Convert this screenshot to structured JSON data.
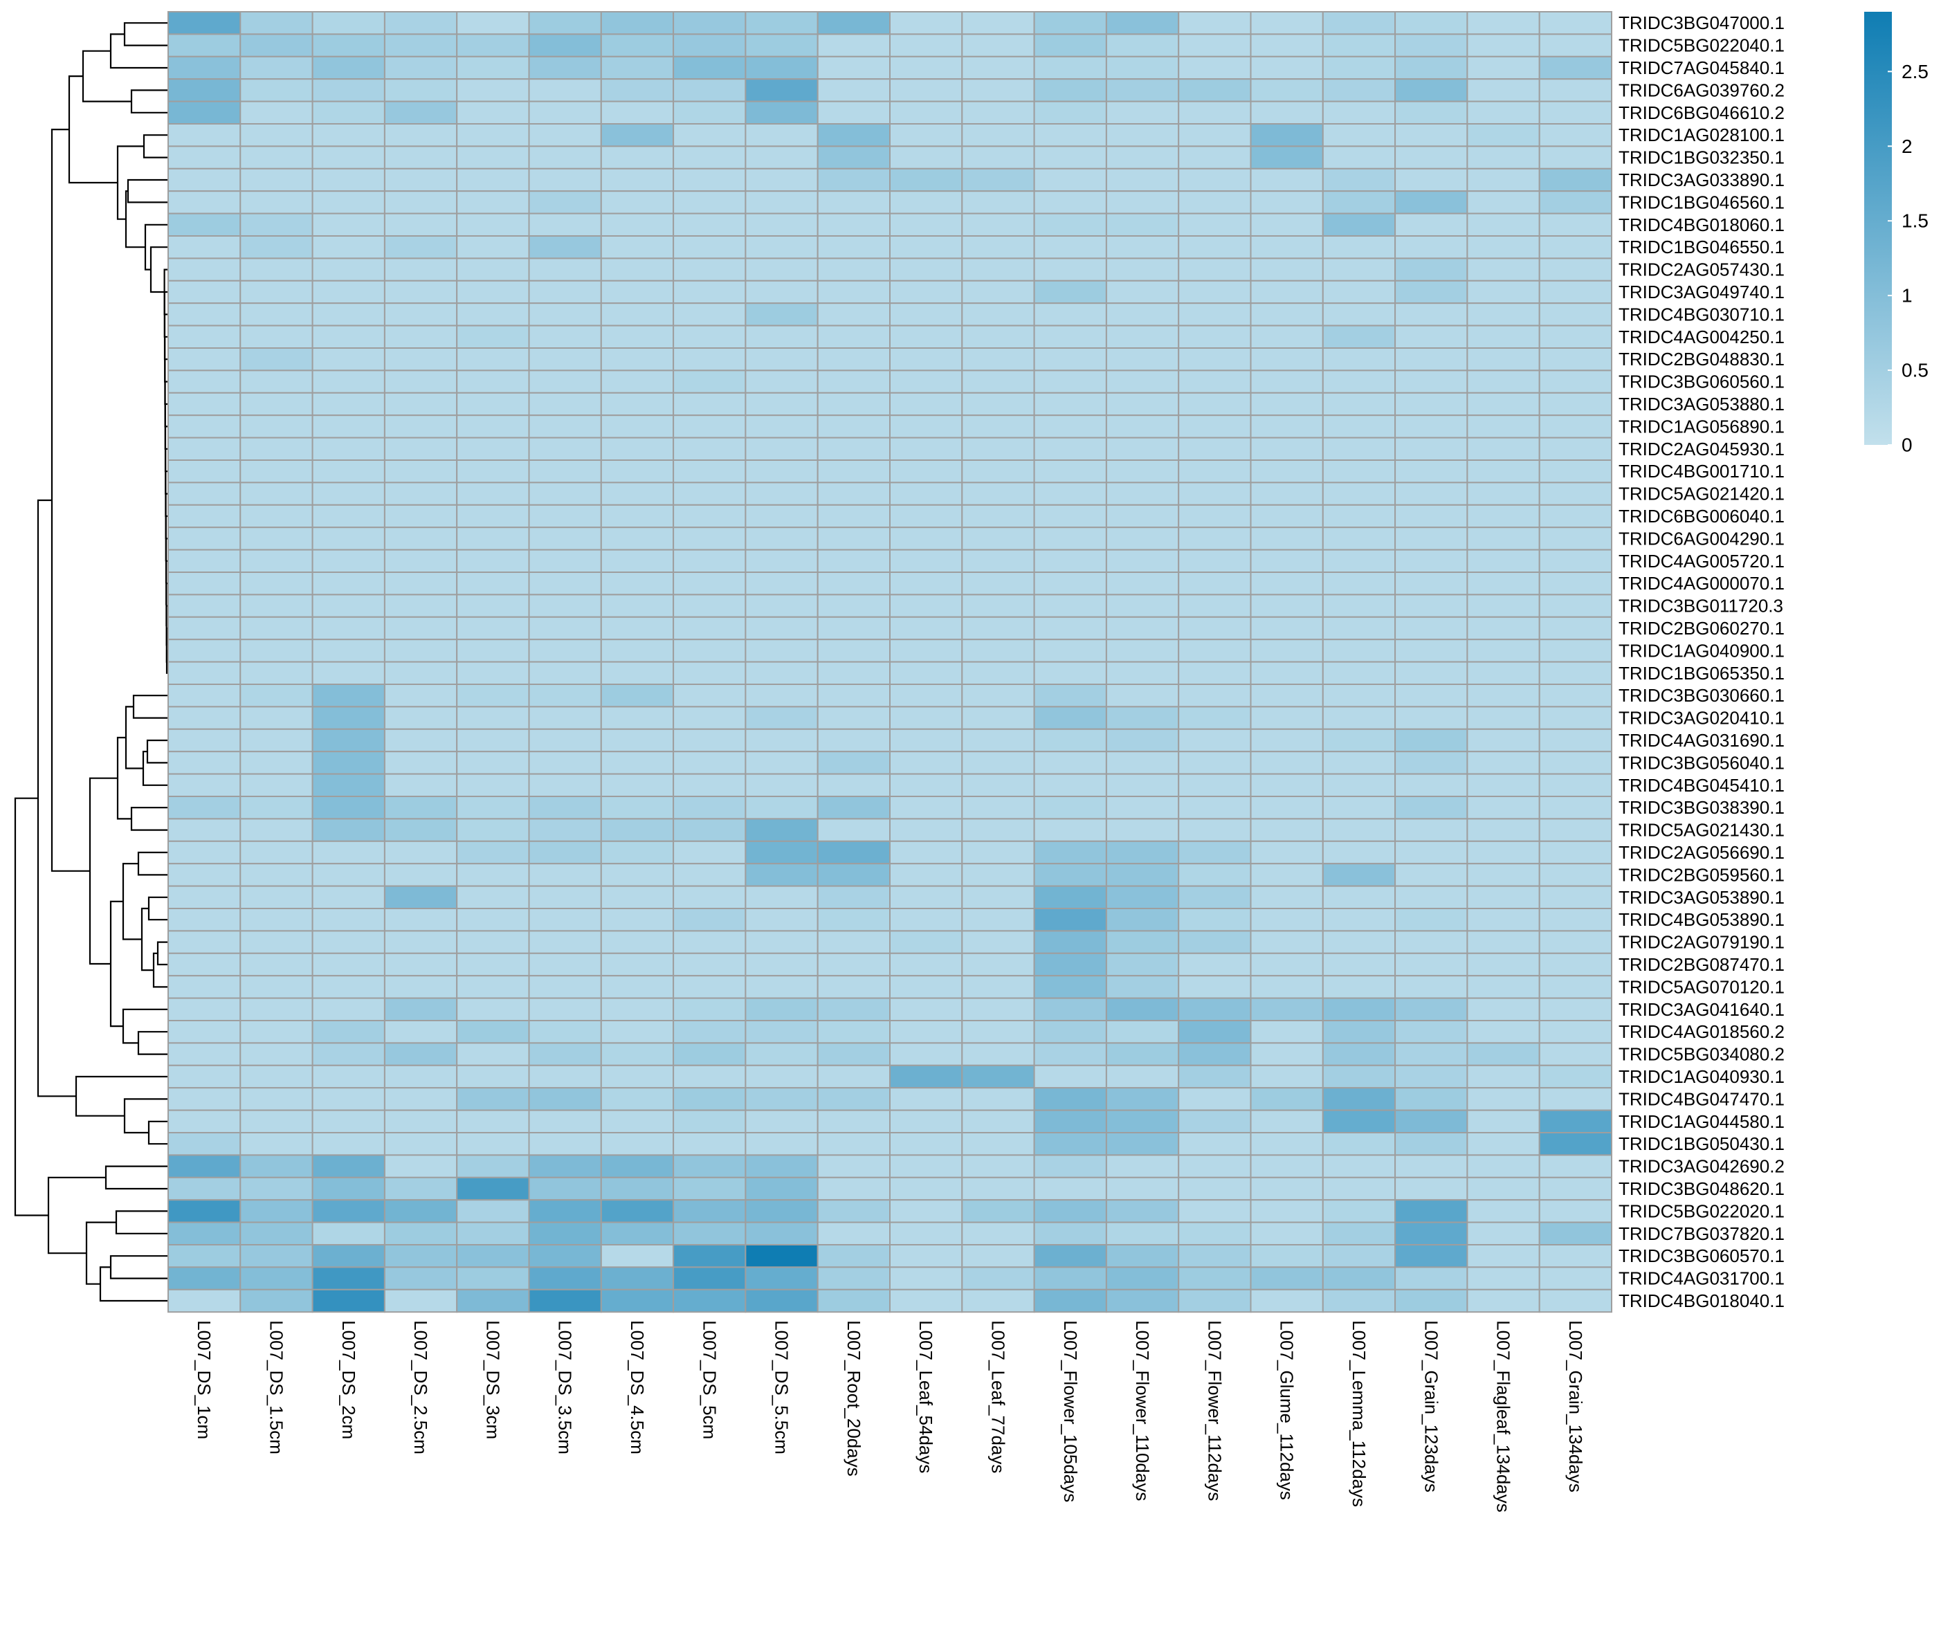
{
  "chart_data": {
    "type": "heatmap",
    "title": "",
    "xlabel": "",
    "ylabel": "",
    "colors": {
      "low": "#c2e0ec",
      "high": "#0f7db3",
      "cell_border": "#9e9e9e",
      "tree": "#000000"
    },
    "colorbar": {
      "min": 0,
      "max": 2.9,
      "ticks": [
        0,
        0.5,
        1,
        1.5,
        2,
        2.5
      ],
      "tick_labels": [
        "0",
        "0.5",
        "1",
        "1.5",
        "2",
        "2.5"
      ]
    },
    "columns": [
      "L007_DS_1cm",
      "L007_DS_1.5cm",
      "L007_DS_2cm",
      "L007_DS_2.5cm",
      "L007_DS_3cm",
      "L007_DS_3.5cm",
      "L007_DS_4.5cm",
      "L007_DS_5cm",
      "L007_DS_5.5cm",
      "L007_Root_20days",
      "L007_Leaf_54days",
      "L007_Leaf_77days",
      "L007_Flower_105days",
      "L007_Flower_110days",
      "L007_Flower_112days",
      "L007_Glume_112days",
      "L007_Lemma_112days",
      "L007_Grain_123days",
      "L007_Flagleaf_134days",
      "L007_Grain_134days"
    ],
    "rows": [
      "TRIDC3BG047000.1",
      "TRIDC5BG022040.1",
      "TRIDC7AG045840.1",
      "TRIDC6AG039760.2",
      "TRIDC6BG046610.2",
      "TRIDC1AG028100.1",
      "TRIDC1BG032350.1",
      "TRIDC3AG033890.1",
      "TRIDC1BG046560.1",
      "TRIDC4BG018060.1",
      "TRIDC1BG046550.1",
      "TRIDC2AG057430.1",
      "TRIDC3AG049740.1",
      "TRIDC4BG030710.1",
      "TRIDC4AG004250.1",
      "TRIDC2BG048830.1",
      "TRIDC3BG060560.1",
      "TRIDC3AG053880.1",
      "TRIDC1AG056890.1",
      "TRIDC2AG045930.1",
      "TRIDC4BG001710.1",
      "TRIDC5AG021420.1",
      "TRIDC6BG006040.1",
      "TRIDC6AG004290.1",
      "TRIDC4AG005720.1",
      "TRIDC4AG000070.1",
      "TRIDC3BG011720.3",
      "TRIDC2BG060270.1",
      "TRIDC1AG040900.1",
      "TRIDC1BG065350.1",
      "TRIDC3BG030660.1",
      "TRIDC3AG020410.1",
      "TRIDC4AG031690.1",
      "TRIDC3BG056040.1",
      "TRIDC4BG045410.1",
      "TRIDC3BG038390.1",
      "TRIDC5AG021430.1",
      "TRIDC2AG056690.1",
      "TRIDC2BG059560.1",
      "TRIDC3AG053890.1",
      "TRIDC4BG053890.1",
      "TRIDC2AG079190.1",
      "TRIDC2BG087470.1",
      "TRIDC5AG070120.1",
      "TRIDC3AG041640.1",
      "TRIDC4AG018560.2",
      "TRIDC5BG034080.2",
      "TRIDC1AG040930.1",
      "TRIDC4BG047470.1",
      "TRIDC1AG044580.1",
      "TRIDC1BG050430.1",
      "TRIDC3AG042690.2",
      "TRIDC3BG048620.1",
      "TRIDC5BG022020.1",
      "TRIDC7BG037820.1",
      "TRIDC3BG060570.1",
      "TRIDC4AG031700.1",
      "TRIDC4BG018040.1"
    ],
    "values": [
      [
        1.6,
        0.5,
        0.3,
        0.4,
        0.2,
        0.6,
        0.8,
        0.7,
        0.6,
        1.2,
        0.2,
        0.2,
        0.6,
        0.9,
        0.2,
        0.2,
        0.4,
        0.3,
        0.2,
        0.2
      ],
      [
        0.6,
        0.7,
        0.6,
        0.5,
        0.5,
        1.0,
        0.6,
        0.7,
        0.6,
        0.2,
        0.2,
        0.2,
        0.6,
        0.3,
        0.2,
        0.2,
        0.3,
        0.4,
        0.2,
        0.2
      ],
      [
        0.9,
        0.4,
        0.8,
        0.4,
        0.3,
        0.7,
        0.5,
        1.0,
        1.0,
        0.2,
        0.2,
        0.2,
        0.3,
        0.3,
        0.2,
        0.2,
        0.3,
        0.5,
        0.2,
        0.7
      ],
      [
        1.2,
        0.3,
        0.4,
        0.3,
        0.2,
        0.2,
        0.4,
        0.4,
        1.6,
        0.2,
        0.2,
        0.2,
        0.6,
        0.5,
        0.6,
        0.3,
        0.4,
        1.0,
        0.2,
        0.2
      ],
      [
        1.2,
        0.2,
        0.3,
        0.7,
        0.2,
        0.2,
        0.2,
        0.3,
        1.1,
        0.2,
        0.2,
        0.2,
        0.3,
        0.2,
        0.2,
        0.2,
        0.2,
        0.3,
        0.2,
        0.2
      ],
      [
        0.2,
        0.2,
        0.2,
        0.2,
        0.2,
        0.2,
        0.9,
        0.2,
        0.2,
        1.0,
        0.2,
        0.2,
        0.2,
        0.2,
        0.2,
        1.1,
        0.2,
        0.2,
        0.3,
        0.2
      ],
      [
        0.2,
        0.2,
        0.2,
        0.2,
        0.2,
        0.2,
        0.2,
        0.2,
        0.2,
        0.8,
        0.2,
        0.2,
        0.2,
        0.2,
        0.2,
        1.0,
        0.2,
        0.2,
        0.2,
        0.2
      ],
      [
        0.2,
        0.2,
        0.2,
        0.2,
        0.2,
        0.2,
        0.2,
        0.2,
        0.2,
        0.5,
        0.6,
        0.5,
        0.2,
        0.2,
        0.2,
        0.2,
        0.4,
        0.2,
        0.2,
        0.8
      ],
      [
        0.2,
        0.2,
        0.2,
        0.2,
        0.2,
        0.4,
        0.2,
        0.2,
        0.2,
        0.2,
        0.2,
        0.2,
        0.2,
        0.2,
        0.2,
        0.2,
        0.5,
        0.9,
        0.2,
        0.5
      ],
      [
        0.6,
        0.4,
        0.2,
        0.2,
        0.2,
        0.2,
        0.2,
        0.2,
        0.2,
        0.2,
        0.2,
        0.2,
        0.3,
        0.3,
        0.2,
        0.2,
        0.9,
        0.2,
        0.2,
        0.2
      ],
      [
        0.2,
        0.4,
        0.2,
        0.4,
        0.2,
        0.7,
        0.2,
        0.2,
        0.2,
        0.2,
        0.2,
        0.2,
        0.2,
        0.2,
        0.2,
        0.2,
        0.2,
        0.2,
        0.2,
        0.2
      ],
      [
        0.2,
        0.2,
        0.2,
        0.2,
        0.2,
        0.2,
        0.2,
        0.2,
        0.2,
        0.2,
        0.2,
        0.2,
        0.2,
        0.2,
        0.2,
        0.2,
        0.2,
        0.5,
        0.2,
        0.2
      ],
      [
        0.2,
        0.2,
        0.2,
        0.2,
        0.2,
        0.2,
        0.2,
        0.2,
        0.2,
        0.2,
        0.2,
        0.2,
        0.6,
        0.2,
        0.2,
        0.2,
        0.2,
        0.5,
        0.2,
        0.2
      ],
      [
        0.2,
        0.2,
        0.2,
        0.2,
        0.2,
        0.2,
        0.2,
        0.2,
        0.6,
        0.2,
        0.2,
        0.2,
        0.2,
        0.2,
        0.2,
        0.2,
        0.2,
        0.2,
        0.2,
        0.2
      ],
      [
        0.2,
        0.2,
        0.2,
        0.2,
        0.3,
        0.2,
        0.2,
        0.2,
        0.2,
        0.2,
        0.2,
        0.2,
        0.2,
        0.2,
        0.2,
        0.2,
        0.5,
        0.2,
        0.2,
        0.2
      ],
      [
        0.2,
        0.4,
        0.2,
        0.2,
        0.2,
        0.2,
        0.2,
        0.2,
        0.2,
        0.2,
        0.2,
        0.2,
        0.2,
        0.2,
        0.2,
        0.2,
        0.2,
        0.2,
        0.2,
        0.2
      ],
      [
        0.2,
        0.2,
        0.2,
        0.2,
        0.2,
        0.2,
        0.2,
        0.3,
        0.2,
        0.2,
        0.2,
        0.2,
        0.2,
        0.2,
        0.2,
        0.2,
        0.2,
        0.2,
        0.2,
        0.2
      ],
      [
        0.2,
        0.2,
        0.2,
        0.2,
        0.2,
        0.2,
        0.2,
        0.2,
        0.2,
        0.2,
        0.2,
        0.2,
        0.2,
        0.2,
        0.2,
        0.2,
        0.2,
        0.2,
        0.2,
        0.2
      ],
      [
        0.2,
        0.2,
        0.2,
        0.2,
        0.2,
        0.2,
        0.2,
        0.2,
        0.2,
        0.2,
        0.2,
        0.2,
        0.2,
        0.2,
        0.2,
        0.2,
        0.2,
        0.2,
        0.2,
        0.2
      ],
      [
        0.2,
        0.2,
        0.2,
        0.2,
        0.2,
        0.2,
        0.2,
        0.2,
        0.2,
        0.2,
        0.2,
        0.2,
        0.2,
        0.2,
        0.2,
        0.2,
        0.2,
        0.2,
        0.2,
        0.2
      ],
      [
        0.2,
        0.2,
        0.2,
        0.2,
        0.2,
        0.2,
        0.2,
        0.2,
        0.2,
        0.2,
        0.2,
        0.2,
        0.2,
        0.2,
        0.2,
        0.2,
        0.2,
        0.2,
        0.2,
        0.2
      ],
      [
        0.2,
        0.2,
        0.2,
        0.2,
        0.2,
        0.2,
        0.2,
        0.2,
        0.2,
        0.2,
        0.2,
        0.2,
        0.2,
        0.2,
        0.2,
        0.2,
        0.2,
        0.2,
        0.2,
        0.2
      ],
      [
        0.2,
        0.2,
        0.2,
        0.2,
        0.2,
        0.2,
        0.2,
        0.2,
        0.2,
        0.2,
        0.2,
        0.2,
        0.2,
        0.2,
        0.2,
        0.2,
        0.2,
        0.2,
        0.2,
        0.2
      ],
      [
        0.2,
        0.2,
        0.2,
        0.2,
        0.2,
        0.2,
        0.2,
        0.2,
        0.2,
        0.2,
        0.2,
        0.2,
        0.2,
        0.2,
        0.2,
        0.2,
        0.2,
        0.2,
        0.2,
        0.2
      ],
      [
        0.2,
        0.2,
        0.2,
        0.2,
        0.2,
        0.2,
        0.2,
        0.2,
        0.2,
        0.2,
        0.2,
        0.2,
        0.2,
        0.2,
        0.2,
        0.2,
        0.2,
        0.2,
        0.2,
        0.2
      ],
      [
        0.2,
        0.2,
        0.2,
        0.2,
        0.2,
        0.2,
        0.2,
        0.2,
        0.2,
        0.2,
        0.2,
        0.2,
        0.2,
        0.2,
        0.2,
        0.2,
        0.2,
        0.2,
        0.2,
        0.2
      ],
      [
        0.2,
        0.2,
        0.2,
        0.2,
        0.2,
        0.2,
        0.2,
        0.2,
        0.2,
        0.2,
        0.2,
        0.2,
        0.2,
        0.2,
        0.2,
        0.2,
        0.2,
        0.2,
        0.2,
        0.2
      ],
      [
        0.2,
        0.2,
        0.2,
        0.2,
        0.2,
        0.2,
        0.2,
        0.2,
        0.2,
        0.2,
        0.2,
        0.2,
        0.2,
        0.2,
        0.2,
        0.2,
        0.2,
        0.2,
        0.2,
        0.2
      ],
      [
        0.2,
        0.2,
        0.2,
        0.2,
        0.2,
        0.2,
        0.2,
        0.2,
        0.2,
        0.2,
        0.2,
        0.2,
        0.2,
        0.2,
        0.2,
        0.2,
        0.2,
        0.2,
        0.2,
        0.2
      ],
      [
        0.2,
        0.2,
        0.2,
        0.2,
        0.2,
        0.2,
        0.2,
        0.2,
        0.2,
        0.2,
        0.2,
        0.2,
        0.2,
        0.2,
        0.2,
        0.2,
        0.2,
        0.2,
        0.2,
        0.2
      ],
      [
        0.2,
        0.3,
        1.0,
        0.2,
        0.3,
        0.3,
        0.6,
        0.2,
        0.2,
        0.2,
        0.2,
        0.2,
        0.5,
        0.2,
        0.2,
        0.2,
        0.2,
        0.2,
        0.2,
        0.2
      ],
      [
        0.2,
        0.2,
        1.0,
        0.2,
        0.2,
        0.2,
        0.2,
        0.2,
        0.4,
        0.2,
        0.2,
        0.2,
        0.8,
        0.5,
        0.3,
        0.2,
        0.2,
        0.2,
        0.2,
        0.2
      ],
      [
        0.2,
        0.2,
        1.0,
        0.2,
        0.2,
        0.2,
        0.2,
        0.2,
        0.2,
        0.2,
        0.2,
        0.2,
        0.3,
        0.4,
        0.2,
        0.2,
        0.3,
        0.6,
        0.2,
        0.2
      ],
      [
        0.2,
        0.2,
        1.0,
        0.2,
        0.2,
        0.2,
        0.2,
        0.2,
        0.2,
        0.5,
        0.2,
        0.2,
        0.2,
        0.2,
        0.2,
        0.2,
        0.2,
        0.4,
        0.2,
        0.2
      ],
      [
        0.2,
        0.2,
        1.0,
        0.2,
        0.2,
        0.2,
        0.2,
        0.2,
        0.2,
        0.2,
        0.2,
        0.2,
        0.2,
        0.2,
        0.2,
        0.2,
        0.2,
        0.2,
        0.2,
        0.2
      ],
      [
        0.5,
        0.3,
        1.0,
        0.6,
        0.3,
        0.5,
        0.3,
        0.4,
        0.3,
        0.8,
        0.2,
        0.2,
        0.3,
        0.2,
        0.2,
        0.2,
        0.2,
        0.5,
        0.2,
        0.2
      ],
      [
        0.2,
        0.2,
        0.8,
        0.6,
        0.3,
        0.4,
        0.5,
        0.5,
        1.3,
        0.2,
        0.2,
        0.2,
        0.2,
        0.2,
        0.2,
        0.2,
        0.2,
        0.2,
        0.2,
        0.2
      ],
      [
        0.2,
        0.2,
        0.2,
        0.2,
        0.4,
        0.5,
        0.3,
        0.2,
        1.3,
        1.4,
        0.2,
        0.2,
        0.8,
        0.8,
        0.5,
        0.2,
        0.2,
        0.2,
        0.2,
        0.2
      ],
      [
        0.2,
        0.2,
        0.2,
        0.2,
        0.2,
        0.2,
        0.2,
        0.2,
        1.0,
        1.0,
        0.2,
        0.2,
        0.8,
        0.8,
        0.3,
        0.2,
        0.9,
        0.2,
        0.2,
        0.2
      ],
      [
        0.2,
        0.2,
        0.2,
        1.1,
        0.2,
        0.2,
        0.2,
        0.2,
        0.2,
        0.4,
        0.2,
        0.2,
        1.3,
        0.9,
        0.5,
        0.2,
        0.2,
        0.2,
        0.2,
        0.2
      ],
      [
        0.2,
        0.2,
        0.2,
        0.2,
        0.2,
        0.2,
        0.2,
        0.4,
        0.2,
        0.3,
        0.2,
        0.2,
        1.6,
        0.8,
        0.3,
        0.2,
        0.2,
        0.3,
        0.2,
        0.2
      ],
      [
        0.2,
        0.2,
        0.2,
        0.2,
        0.2,
        0.2,
        0.2,
        0.2,
        0.2,
        0.2,
        0.3,
        0.2,
        1.1,
        0.6,
        0.5,
        0.2,
        0.2,
        0.2,
        0.2,
        0.2
      ],
      [
        0.2,
        0.2,
        0.2,
        0.2,
        0.2,
        0.2,
        0.2,
        0.2,
        0.2,
        0.2,
        0.2,
        0.2,
        1.1,
        0.5,
        0.2,
        0.2,
        0.2,
        0.2,
        0.2,
        0.2
      ],
      [
        0.2,
        0.2,
        0.2,
        0.2,
        0.2,
        0.2,
        0.2,
        0.2,
        0.2,
        0.2,
        0.2,
        0.2,
        1.0,
        0.5,
        0.2,
        0.2,
        0.2,
        0.2,
        0.2,
        0.2
      ],
      [
        0.2,
        0.2,
        0.2,
        0.7,
        0.2,
        0.2,
        0.2,
        0.3,
        0.6,
        0.5,
        0.2,
        0.2,
        0.7,
        1.1,
        0.9,
        0.7,
        0.9,
        0.7,
        0.2,
        0.2
      ],
      [
        0.2,
        0.2,
        0.5,
        0.2,
        0.6,
        0.3,
        0.2,
        0.4,
        0.4,
        0.3,
        0.2,
        0.2,
        0.5,
        0.3,
        1.1,
        0.2,
        0.7,
        0.4,
        0.2,
        0.2
      ],
      [
        0.2,
        0.2,
        0.4,
        0.7,
        0.2,
        0.5,
        0.3,
        0.6,
        0.3,
        0.5,
        0.2,
        0.2,
        0.4,
        0.6,
        0.9,
        0.2,
        0.7,
        0.4,
        0.5,
        0.2
      ],
      [
        0.2,
        0.2,
        0.2,
        0.2,
        0.2,
        0.2,
        0.2,
        0.2,
        0.2,
        0.2,
        1.4,
        1.3,
        0.2,
        0.2,
        0.5,
        0.2,
        0.5,
        0.4,
        0.2,
        0.3
      ],
      [
        0.2,
        0.2,
        0.2,
        0.2,
        0.7,
        0.8,
        0.3,
        0.6,
        0.5,
        0.5,
        0.2,
        0.2,
        1.2,
        0.9,
        0.2,
        0.6,
        1.4,
        0.6,
        0.2,
        0.2
      ],
      [
        0.2,
        0.2,
        0.2,
        0.2,
        0.2,
        0.2,
        0.2,
        0.3,
        0.2,
        0.2,
        0.2,
        0.2,
        1.1,
        1.0,
        0.4,
        0.2,
        1.5,
        1.1,
        0.2,
        1.7
      ],
      [
        0.4,
        0.2,
        0.2,
        0.2,
        0.2,
        0.2,
        0.2,
        0.2,
        0.2,
        0.2,
        0.2,
        0.2,
        0.9,
        0.9,
        0.2,
        0.2,
        0.3,
        0.5,
        0.2,
        1.8
      ],
      [
        1.6,
        0.8,
        1.4,
        0.2,
        0.5,
        1.1,
        1.2,
        0.8,
        0.9,
        0.2,
        0.2,
        0.2,
        0.4,
        0.2,
        0.2,
        0.2,
        0.2,
        0.2,
        0.2,
        0.2
      ],
      [
        0.5,
        0.5,
        1.0,
        0.5,
        2.0,
        0.8,
        0.8,
        0.6,
        1.0,
        0.2,
        0.2,
        0.2,
        0.2,
        0.2,
        0.2,
        0.2,
        0.2,
        0.2,
        0.2,
        0.2
      ],
      [
        2.1,
        0.9,
        1.6,
        1.3,
        0.4,
        1.5,
        1.8,
        1.1,
        1.2,
        0.5,
        0.2,
        0.6,
        0.9,
        0.7,
        0.2,
        0.2,
        0.3,
        1.7,
        0.2,
        0.2
      ],
      [
        1.0,
        0.8,
        0.3,
        0.6,
        0.5,
        1.3,
        1.0,
        0.8,
        0.9,
        0.2,
        0.2,
        0.2,
        0.5,
        0.3,
        0.3,
        0.2,
        0.5,
        1.6,
        0.2,
        0.8
      ],
      [
        0.6,
        0.7,
        1.4,
        0.8,
        0.9,
        1.2,
        0.2,
        2.0,
        2.9,
        0.5,
        0.2,
        0.2,
        1.4,
        0.8,
        0.5,
        0.3,
        0.4,
        1.6,
        0.2,
        0.2
      ],
      [
        1.3,
        1.0,
        2.1,
        0.7,
        0.6,
        1.6,
        1.4,
        2.0,
        1.5,
        0.5,
        0.2,
        0.4,
        0.8,
        1.0,
        0.6,
        0.8,
        0.8,
        0.4,
        0.2,
        0.2
      ],
      [
        0.2,
        0.8,
        2.3,
        0.2,
        1.1,
        2.2,
        1.5,
        1.5,
        1.7,
        0.6,
        0.2,
        0.2,
        1.2,
        0.9,
        0.5,
        0.2,
        0.4,
        0.6,
        0.2,
        0.2
      ]
    ]
  }
}
